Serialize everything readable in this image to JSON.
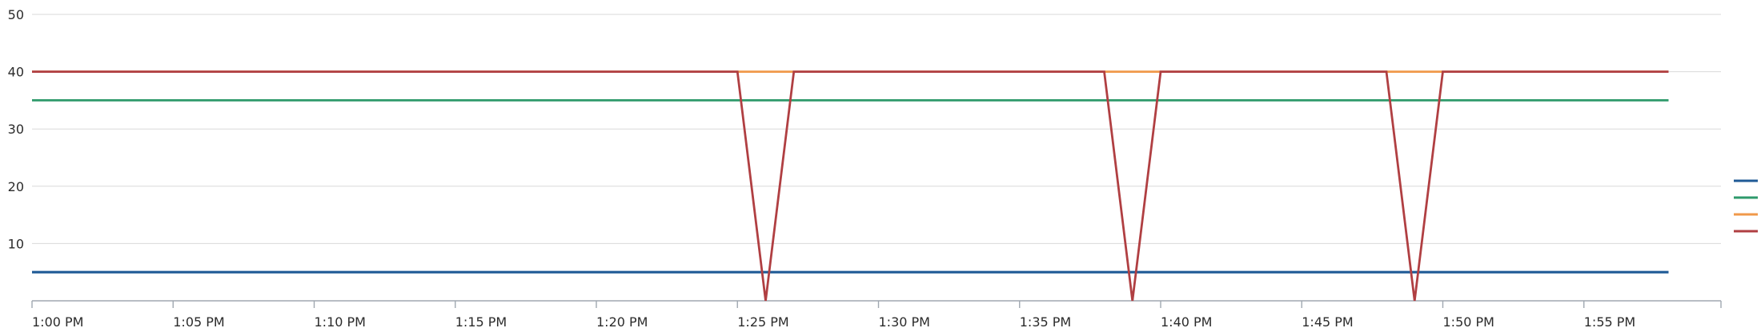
{
  "chart_data": {
    "type": "line",
    "x_axis": {
      "unit": "time",
      "start": "1:00 PM",
      "end": "1:59 PM",
      "tick_labels": [
        "1:00 PM",
        "1:05 PM",
        "1:10 PM",
        "1:15 PM",
        "1:20 PM",
        "1:25 PM",
        "1:30 PM",
        "1:35 PM",
        "1:40 PM",
        "1:45 PM",
        "1:50 PM",
        "1:55 PM"
      ]
    },
    "y_axis": {
      "tick_labels": [
        "10",
        "20",
        "30",
        "40",
        "50"
      ],
      "ylim": [
        0,
        50
      ]
    },
    "grid": true,
    "legend": "right",
    "series": [
      {
        "color": "#1f5a96",
        "points": [
          [
            "1:00 PM",
            5
          ],
          [
            "1:58 PM",
            5
          ]
        ]
      },
      {
        "color": "#2e9a6b",
        "points": [
          [
            "1:00 PM",
            35
          ],
          [
            "1:58 PM",
            35
          ]
        ]
      },
      {
        "color": "#f0994a",
        "points": [
          [
            "1:00 PM",
            40
          ],
          [
            "1:58 PM",
            40
          ]
        ]
      },
      {
        "color": "#b03f42",
        "points": [
          [
            "1:00 PM",
            40
          ],
          [
            "1:25 PM",
            40
          ],
          [
            "1:26 PM",
            0
          ],
          [
            "1:27 PM",
            40
          ],
          [
            "1:38 PM",
            40
          ],
          [
            "1:39 PM",
            0
          ],
          [
            "1:40 PM",
            40
          ],
          [
            "1:48 PM",
            40
          ],
          [
            "1:49 PM",
            0
          ],
          [
            "1:50 PM",
            40
          ],
          [
            "1:58 PM",
            40
          ]
        ]
      }
    ]
  }
}
